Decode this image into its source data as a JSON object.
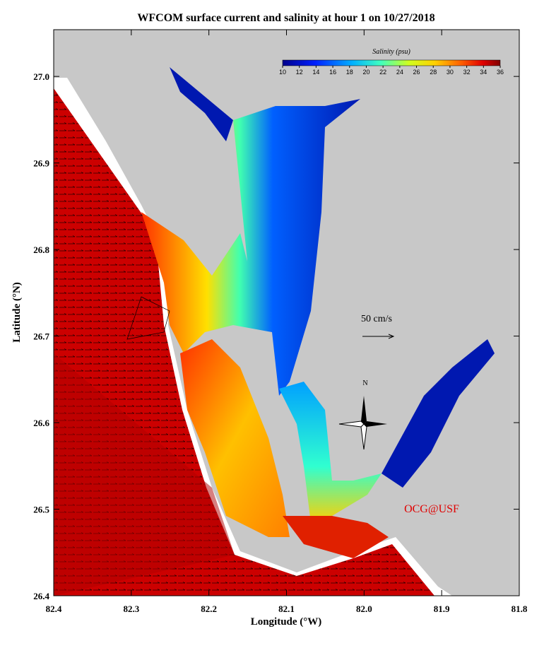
{
  "map": {
    "title": "WFCOM surface current and salinity at hour 1 on 10/27/2018",
    "xlabel": "Longitude (°W)",
    "ylabel": "Latitude (°N)",
    "xlim": [
      82.4,
      81.8
    ],
    "ylim": [
      26.4,
      27.054
    ],
    "xticks": [
      82.4,
      82.3,
      82.2,
      82.1,
      {
        "value": 82.0,
        "label": "82.0"
      },
      81.9,
      81.8
    ],
    "yticks": [
      26.4,
      26.5,
      26.6,
      26.7,
      26.8,
      26.9,
      {
        "value": 27.0,
        "label": "27.0"
      }
    ],
    "colorbar": {
      "label": "Salinity (psu)",
      "lim": [
        10,
        36
      ],
      "ticks": [
        10,
        12,
        14,
        16,
        18,
        20,
        22,
        24,
        26,
        28,
        30,
        32,
        34,
        36
      ]
    },
    "scale_label": "50 cm/s",
    "north_label": "N",
    "credit": "OCG@USF"
  }
}
